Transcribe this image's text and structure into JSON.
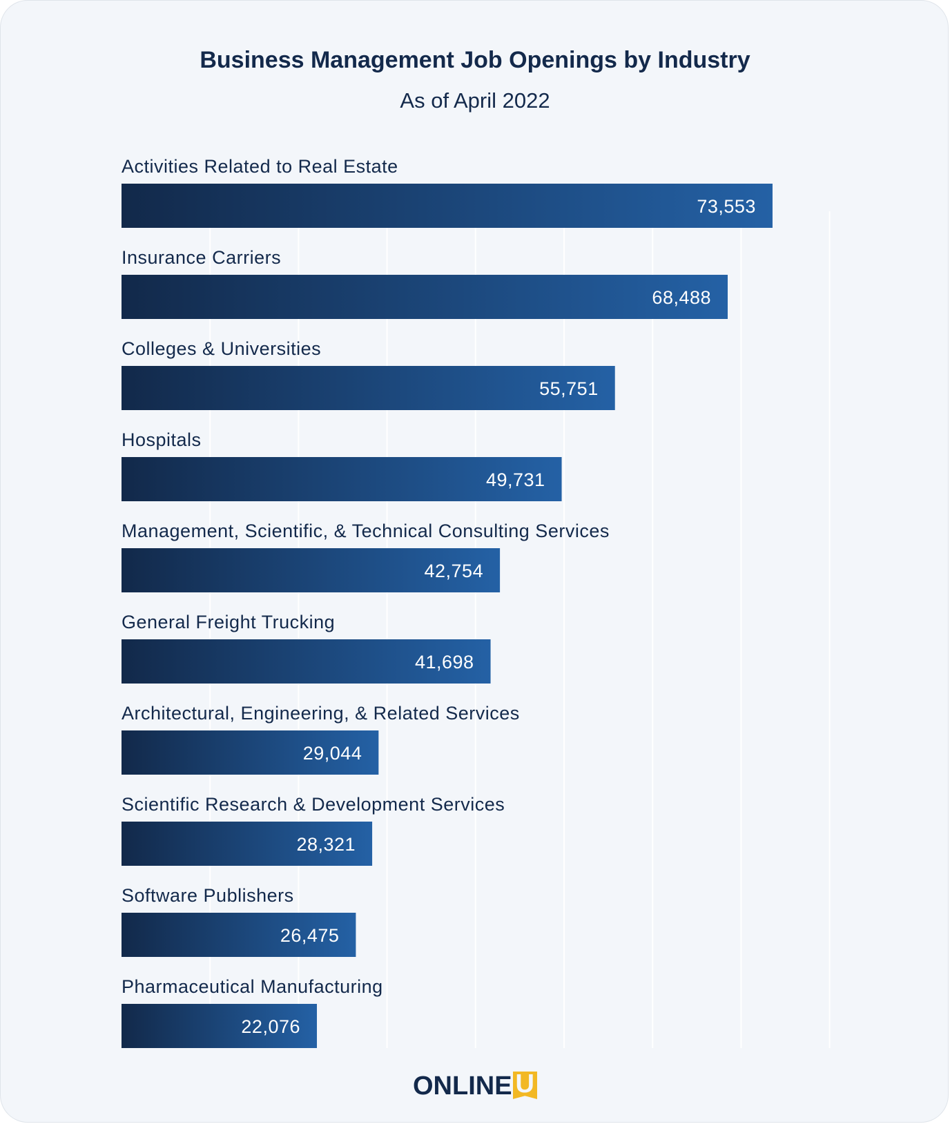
{
  "chart_data": {
    "type": "bar",
    "orientation": "horizontal",
    "title": "Business Management Job Openings by Industry",
    "subtitle": "As of April 2022",
    "categories": [
      "Activities Related to Real Estate",
      "Insurance Carriers",
      "Colleges & Universities",
      "Hospitals",
      "Management, Scientific, & Technical Consulting Services",
      "General Freight Trucking",
      "Architectural, Engineering, & Related Services",
      "Scientific Research & Development Services",
      "Software Publishers",
      "Pharmaceutical Manufacturing"
    ],
    "values": [
      73553,
      68488,
      55751,
      49731,
      42754,
      41698,
      29044,
      28321,
      26475,
      22076
    ],
    "value_labels": [
      "73,553",
      "68,488",
      "55,751",
      "49,731",
      "42,754",
      "41,698",
      "29,044",
      "28,321",
      "26,475",
      "22,076"
    ],
    "xlim": [
      0,
      80000
    ],
    "grid": true,
    "bar_gradient": [
      "#12294a",
      "#2461a5"
    ]
  },
  "brand": {
    "logo_text": "ONLINE",
    "logo_mark": "U",
    "logo_mark_color": "#f2b824"
  }
}
